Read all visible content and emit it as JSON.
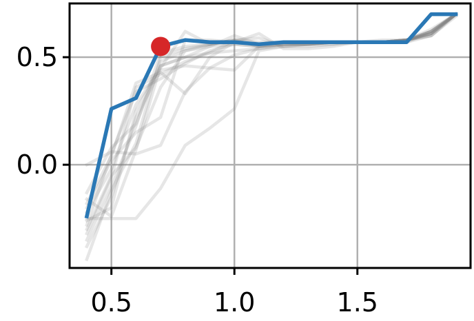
{
  "chart_data": {
    "type": "line",
    "title": "",
    "xlabel": "",
    "ylabel": "",
    "xlim": [
      0.33,
      1.96
    ],
    "ylim": [
      -0.48,
      0.75
    ],
    "grid": true,
    "x_ticks": [
      0.5,
      1.0,
      1.5
    ],
    "y_ticks": [
      0.0,
      0.5
    ],
    "x_tick_labels": [
      "0.5",
      "1.0",
      "1.5"
    ],
    "y_tick_labels": [
      "0.0",
      "0.5"
    ],
    "colors": {
      "highlight": "#2a78b5",
      "background_series": "#808080",
      "marker": "#d62728",
      "grid": "#b0b0b0",
      "axes": "#000000"
    },
    "x": [
      0.4,
      0.5,
      0.6,
      0.7,
      0.8,
      0.9,
      1.0,
      1.1,
      1.2,
      1.3,
      1.4,
      1.5,
      1.6,
      1.7,
      1.8,
      1.9
    ],
    "highlight_series": {
      "values": [
        -0.24,
        0.26,
        0.31,
        0.55,
        0.58,
        0.57,
        0.57,
        0.56,
        0.57,
        0.57,
        0.57,
        0.57,
        0.57,
        0.57,
        0.7,
        0.7
      ]
    },
    "marker_point": {
      "x": 0.7,
      "y": 0.55
    },
    "background_series": [
      {
        "values": [
          -0.16,
          -0.24,
          0.07,
          0.46,
          0.5,
          0.52,
          0.53,
          0.54,
          0.55,
          0.56,
          0.56,
          0.57,
          0.57,
          0.57,
          0.62,
          0.7
        ]
      },
      {
        "values": [
          -0.32,
          -0.06,
          0.36,
          0.42,
          0.48,
          0.52,
          0.58,
          0.55,
          0.56,
          0.56,
          0.57,
          0.57,
          0.57,
          0.57,
          0.6,
          0.69
        ]
      },
      {
        "values": [
          -0.28,
          0.05,
          0.34,
          0.4,
          0.47,
          0.53,
          0.56,
          0.55,
          0.56,
          0.56,
          0.57,
          0.57,
          0.57,
          0.58,
          0.61,
          0.7
        ]
      },
      {
        "values": [
          -0.22,
          -0.02,
          0.28,
          0.45,
          0.62,
          0.56,
          0.58,
          0.57,
          0.57,
          0.57,
          0.57,
          0.57,
          0.58,
          0.58,
          0.63,
          0.7
        ]
      },
      {
        "values": [
          -0.13,
          0.08,
          0.19,
          0.48,
          0.53,
          0.55,
          0.6,
          0.56,
          0.57,
          0.57,
          0.57,
          0.57,
          0.57,
          0.58,
          0.62,
          0.7
        ]
      },
      {
        "values": [
          -0.38,
          -0.15,
          0.22,
          0.44,
          0.46,
          0.45,
          0.44,
          0.55,
          0.56,
          0.56,
          0.57,
          0.57,
          0.57,
          0.58,
          0.61,
          0.7
        ]
      },
      {
        "values": [
          -0.35,
          -0.1,
          0.18,
          0.52,
          0.55,
          0.56,
          0.57,
          0.56,
          0.57,
          0.57,
          0.57,
          0.57,
          0.57,
          0.58,
          0.62,
          0.7
        ]
      },
      {
        "values": [
          -0.44,
          -0.12,
          0.1,
          0.5,
          0.54,
          0.56,
          0.58,
          0.55,
          0.57,
          0.57,
          0.57,
          0.57,
          0.57,
          0.58,
          0.62,
          0.7
        ]
      },
      {
        "values": [
          0.0,
          0.06,
          0.05,
          0.09,
          0.34,
          0.45,
          0.51,
          0.54,
          0.56,
          0.56,
          0.57,
          0.57,
          0.57,
          0.58,
          0.61,
          0.7
        ]
      },
      {
        "values": [
          -0.25,
          -0.25,
          -0.25,
          -0.11,
          0.09,
          0.17,
          0.26,
          0.53,
          0.55,
          0.56,
          0.57,
          0.57,
          0.57,
          0.58,
          0.6,
          0.7
        ]
      },
      {
        "values": [
          -0.3,
          -0.05,
          0.08,
          0.36,
          0.53,
          0.56,
          0.58,
          0.59,
          0.55,
          0.55,
          0.56,
          0.57,
          0.57,
          0.58,
          0.61,
          0.7
        ]
      },
      {
        "values": [
          -0.2,
          0.02,
          0.15,
          0.22,
          0.58,
          0.58,
          0.57,
          0.61,
          0.54,
          0.54,
          0.55,
          0.57,
          0.57,
          0.58,
          0.6,
          0.7
        ]
      },
      {
        "values": [
          -0.26,
          -0.2,
          0.25,
          0.46,
          0.5,
          0.55,
          0.56,
          0.55,
          0.56,
          0.56,
          0.57,
          0.57,
          0.57,
          0.58,
          0.62,
          0.7
        ]
      },
      {
        "values": [
          -0.18,
          0.04,
          0.38,
          0.43,
          0.33,
          0.5,
          0.57,
          0.56,
          0.57,
          0.57,
          0.57,
          0.57,
          0.57,
          0.58,
          0.61,
          0.7
        ]
      }
    ]
  }
}
